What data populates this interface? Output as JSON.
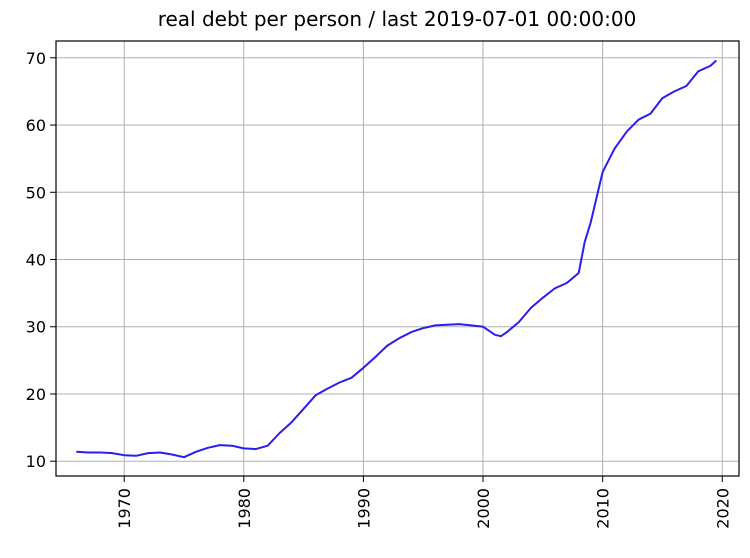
{
  "chart_data": {
    "type": "line",
    "title": "real debt per person / last 2019-07-01 00:00:00",
    "xlabel": "",
    "ylabel": "",
    "xlim": [
      1964.3,
      2021.4
    ],
    "ylim": [
      7.8,
      72.5
    ],
    "x_ticks": [
      1970,
      1980,
      1990,
      2000,
      2010,
      2020
    ],
    "x_tick_labels": [
      "1970",
      "1980",
      "1990",
      "2000",
      "2010",
      "2020"
    ],
    "y_ticks": [
      10,
      20,
      30,
      40,
      50,
      60,
      70
    ],
    "y_tick_labels": [
      "10",
      "20",
      "30",
      "40",
      "50",
      "60",
      "70"
    ],
    "grid": true,
    "legend": "none",
    "line_color": "#2b1cf2",
    "series": [
      {
        "x": [
          1966.0,
          1967.0,
          1968.0,
          1969.0,
          1970.0,
          1971.0,
          1972.0,
          1973.0,
          1974.0,
          1975.0,
          1976.0,
          1977.0,
          1978.0,
          1979.0,
          1980.0,
          1981.0,
          1982.0,
          1983.0,
          1984.0,
          1985.0,
          1986.0,
          1987.0,
          1988.0,
          1989.0,
          1990.0,
          1991.0,
          1992.0,
          1993.0,
          1994.0,
          1995.0,
          1996.0,
          1997.0,
          1998.0,
          1999.0,
          2000.0,
          2001.0,
          2001.5,
          2002.0,
          2003.0,
          2004.0,
          2005.0,
          2006.0,
          2007.0,
          2008.0,
          2008.5,
          2009.0,
          2010.0,
          2011.0,
          2012.0,
          2013.0,
          2014.0,
          2015.0,
          2016.0,
          2017.0,
          2018.0,
          2019.0,
          2019.5
        ],
        "y": [
          11.4,
          11.3,
          11.3,
          11.2,
          10.9,
          10.8,
          11.2,
          11.3,
          11.0,
          10.6,
          11.4,
          12.0,
          12.4,
          12.3,
          11.9,
          11.8,
          12.3,
          14.2,
          15.8,
          17.8,
          19.8,
          20.8,
          21.7,
          22.4,
          23.9,
          25.5,
          27.2,
          28.3,
          29.2,
          29.8,
          30.2,
          30.3,
          30.4,
          30.2,
          30.0,
          28.8,
          28.6,
          29.2,
          30.7,
          32.8,
          34.3,
          35.7,
          36.5,
          38.0,
          42.6,
          45.5,
          53.0,
          56.5,
          59.0,
          60.8,
          61.7,
          64.0,
          65.0,
          65.8,
          68.0,
          68.8,
          69.6
        ]
      }
    ]
  }
}
